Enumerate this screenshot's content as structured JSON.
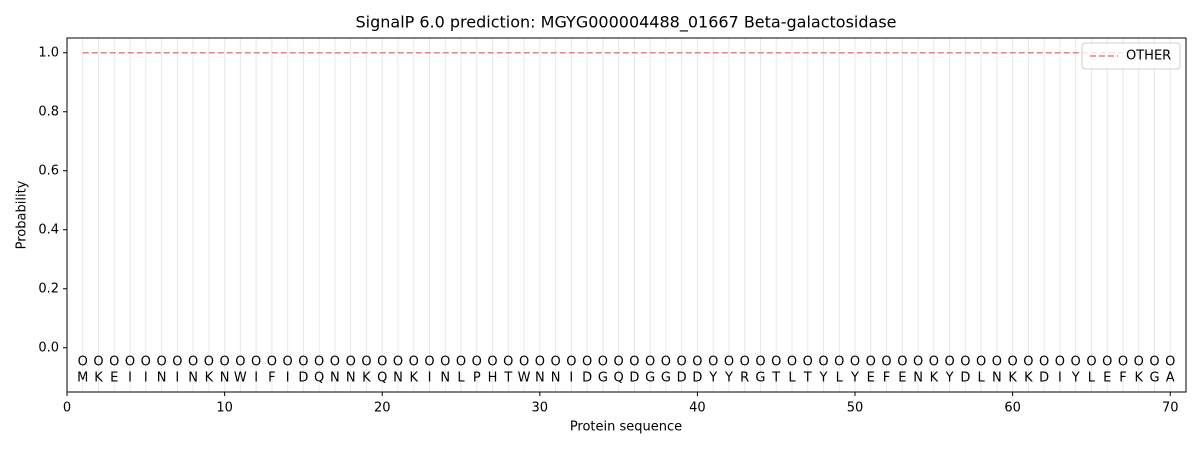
{
  "chart_data": {
    "type": "line",
    "title": "SignalP 6.0 prediction: MGYG000004488_01667 Beta-galactosidase",
    "xlabel": "Protein sequence",
    "ylabel": "Probability",
    "x": [
      1,
      2,
      3,
      4,
      5,
      6,
      7,
      8,
      9,
      10,
      11,
      12,
      13,
      14,
      15,
      16,
      17,
      18,
      19,
      20,
      21,
      22,
      23,
      24,
      25,
      26,
      27,
      28,
      29,
      30,
      31,
      32,
      33,
      34,
      35,
      36,
      37,
      38,
      39,
      40,
      41,
      42,
      43,
      44,
      45,
      46,
      47,
      48,
      49,
      50,
      51,
      52,
      53,
      54,
      55,
      56,
      57,
      58,
      59,
      60,
      61,
      62,
      63,
      64,
      65,
      66,
      67,
      68,
      69,
      70
    ],
    "residues": [
      "M",
      "K",
      "E",
      "I",
      "I",
      "N",
      "I",
      "N",
      "K",
      "N",
      "W",
      "I",
      "F",
      "I",
      "D",
      "Q",
      "N",
      "N",
      "K",
      "Q",
      "N",
      "K",
      "I",
      "N",
      "L",
      "P",
      "H",
      "T",
      "W",
      "N",
      "N",
      "I",
      "D",
      "G",
      "Q",
      "D",
      "G",
      "G",
      "D",
      "D",
      "Y",
      "Y",
      "R",
      "G",
      "T",
      "L",
      "T",
      "Y",
      "L",
      "Y",
      "E",
      "F",
      "E",
      "N",
      "K",
      "Y",
      "D",
      "L",
      "N",
      "K",
      "K",
      "D",
      "I",
      "Y",
      "L",
      "E",
      "F",
      "K",
      "G",
      "A"
    ],
    "labels": [
      "O",
      "O",
      "O",
      "O",
      "O",
      "O",
      "O",
      "O",
      "O",
      "O",
      "O",
      "O",
      "O",
      "O",
      "O",
      "O",
      "O",
      "O",
      "O",
      "O",
      "O",
      "O",
      "O",
      "O",
      "O",
      "O",
      "O",
      "O",
      "O",
      "O",
      "O",
      "O",
      "O",
      "O",
      "O",
      "O",
      "O",
      "O",
      "O",
      "O",
      "O",
      "O",
      "O",
      "O",
      "O",
      "O",
      "O",
      "O",
      "O",
      "O",
      "O",
      "O",
      "O",
      "O",
      "O",
      "O",
      "O",
      "O",
      "O",
      "O",
      "O",
      "O",
      "O",
      "O",
      "O",
      "O",
      "O",
      "O",
      "O",
      "O"
    ],
    "series": [
      {
        "name": "OTHER",
        "color": "#ee7f7f",
        "dashed": true,
        "values": [
          1,
          1,
          1,
          1,
          1,
          1,
          1,
          1,
          1,
          1,
          1,
          1,
          1,
          1,
          1,
          1,
          1,
          1,
          1,
          1,
          1,
          1,
          1,
          1,
          1,
          1,
          1,
          1,
          1,
          1,
          1,
          1,
          1,
          1,
          1,
          1,
          1,
          1,
          1,
          1,
          1,
          1,
          1,
          1,
          1,
          1,
          1,
          1,
          1,
          1,
          1,
          1,
          1,
          1,
          1,
          1,
          1,
          1,
          1,
          1,
          1,
          1,
          1,
          1,
          1,
          1,
          1,
          1,
          1,
          1
        ]
      }
    ],
    "xlim": [
      0,
      71
    ],
    "ylim": [
      -0.15,
      1.05
    ],
    "xticks": [
      0,
      10,
      20,
      30,
      40,
      50,
      60,
      70
    ],
    "yticks": [
      {
        "value": 0,
        "label": "0.0"
      },
      {
        "value": 0.2,
        "label": "0.2"
      },
      {
        "value": 0.4,
        "label": "0.4"
      },
      {
        "value": 0.6,
        "label": "0.6"
      },
      {
        "value": 0.8,
        "label": "0.8"
      },
      {
        "value": 1,
        "label": "1.0"
      }
    ],
    "legend": "upper right"
  }
}
